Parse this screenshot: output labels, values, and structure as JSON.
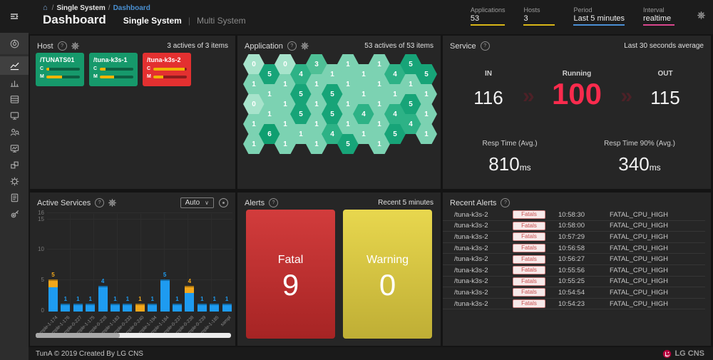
{
  "icons": {
    "help": "?",
    "chevron_down": "∨",
    "home": "⌂",
    "flow_chevron": "»"
  },
  "header": {
    "breadcrumb": [
      "Single System",
      "Dashboard"
    ],
    "title": "Dashboard",
    "tabs": [
      {
        "label": "Single System",
        "active": true
      },
      {
        "label": "Multi System",
        "active": false
      }
    ],
    "stats": [
      {
        "label": "Applications",
        "value": "53",
        "underline": "#d8b517"
      },
      {
        "label": "Hosts",
        "value": "3",
        "underline": "#d8b517"
      },
      {
        "label": "Period",
        "value": "Last 5 minutes",
        "underline": "#4a8fd4"
      },
      {
        "label": "Interval",
        "value": "realtime",
        "underline": "#d8478d"
      }
    ]
  },
  "sidebar": {
    "items": [
      {
        "icon": "dashboard-icon",
        "section": true
      },
      {
        "icon": "line-chart-icon",
        "active": true
      },
      {
        "icon": "bar-chart-icon"
      },
      {
        "icon": "server-icon"
      },
      {
        "icon": "monitor-icon"
      },
      {
        "icon": "user-search-icon"
      },
      {
        "icon": "screen-image-icon"
      },
      {
        "icon": "component-icon"
      },
      {
        "icon": "service-gear-icon"
      },
      {
        "icon": "report-icon"
      },
      {
        "icon": "tools-icon"
      }
    ]
  },
  "panels": {
    "host": {
      "title": "Host",
      "summary": "3 actives of 3 items",
      "row_labels": {
        "cpu": "C",
        "mem": "M"
      },
      "cards": [
        {
          "name": "/TUNATS01",
          "status": "normal",
          "cpu_pct": 8,
          "mem_pct": 46
        },
        {
          "name": "/tuna-k3s-1",
          "status": "normal",
          "cpu_pct": 18,
          "mem_pct": 42
        },
        {
          "name": "/tuna-k3s-2",
          "status": "fatal",
          "cpu_pct": 93,
          "mem_pct": 30
        }
      ]
    },
    "application": {
      "title": "Application",
      "summary": "53 actives of 53 items",
      "value_colors": {
        "0": "#a7e3cb",
        "1": "#7cd2b2",
        "3": "#4fc096",
        "4": "#2db286",
        "5": "#17a478",
        "6": "#0f9f70"
      },
      "hex_columns": [
        {
          "offset": false,
          "values": [
            0,
            1,
            0,
            1,
            1
          ]
        },
        {
          "offset": true,
          "values": [
            5,
            1,
            1,
            6
          ]
        },
        {
          "offset": false,
          "values": [
            0,
            1,
            1,
            1,
            1
          ]
        },
        {
          "offset": true,
          "values": [
            4,
            5,
            5,
            1
          ]
        },
        {
          "offset": false,
          "values": [
            3,
            1,
            1,
            1,
            1
          ]
        },
        {
          "offset": true,
          "values": [
            1,
            5,
            5,
            4
          ]
        },
        {
          "offset": false,
          "values": [
            1,
            1,
            1,
            1,
            5
          ]
        },
        {
          "offset": true,
          "values": [
            1,
            1,
            4,
            1
          ]
        },
        {
          "offset": false,
          "values": [
            1,
            1,
            1,
            1,
            1
          ]
        },
        {
          "offset": true,
          "values": [
            4,
            1,
            4,
            5
          ]
        },
        {
          "offset": false,
          "values": [
            5,
            1,
            5,
            4
          ]
        },
        {
          "offset": true,
          "values": [
            5,
            1,
            1,
            1
          ]
        }
      ]
    },
    "service": {
      "title": "Service",
      "note": "Last 30 seconds average",
      "in_label": "IN",
      "in_value": "116",
      "running_label": "Running",
      "running_value": "100",
      "out_label": "OUT",
      "out_value": "115",
      "resp_avg_label": "Resp Time (Avg.)",
      "resp_avg_value": "810",
      "resp_avg_unit": "ms",
      "resp_90_label": "Resp Time 90% (Avg.)",
      "resp_90_value": "340",
      "resp_90_unit": "ms"
    },
    "active_services": {
      "title": "Active Services",
      "dropdown": "Auto",
      "y_ticks": [
        0,
        5,
        10,
        15,
        16
      ],
      "y_max": 16,
      "scrollbar_thumb_pct": 43,
      "bars": [
        {
          "label": "sample-1-174",
          "total_label": "5",
          "label_color": "#f2a71b",
          "segments": [
            {
              "value": 4,
              "color": "#1e9bf0"
            },
            {
              "value": 1,
              "color": "#f2a71b"
            }
          ]
        },
        {
          "label": "sample-1-176",
          "total_label": "1",
          "label_color": "#1e9bf0",
          "segments": [
            {
              "value": 1,
              "color": "#1e9bf0"
            }
          ]
        },
        {
          "label": "sample-0-227",
          "total_label": "1",
          "label_color": "#1e9bf0",
          "segments": [
            {
              "value": 1,
              "color": "#1e9bf0"
            }
          ]
        },
        {
          "label": "sample-1-175",
          "total_label": "1",
          "label_color": "#1e9bf0",
          "segments": [
            {
              "value": 1,
              "color": "#1e9bf0"
            }
          ]
        },
        {
          "label": "sample-0-228",
          "total_label": "4",
          "label_color": "#1e9bf0",
          "segments": [
            {
              "value": 4,
              "color": "#1e9bf0"
            }
          ]
        },
        {
          "label": "sample-1-183",
          "total_label": "1",
          "label_color": "#1e9bf0",
          "segments": [
            {
              "value": 1,
              "color": "#1e9bf0"
            }
          ]
        },
        {
          "label": "sample-0-233",
          "total_label": "1",
          "label_color": "#1e9bf0",
          "segments": [
            {
              "value": 1,
              "color": "#1e9bf0"
            }
          ]
        },
        {
          "label": "sample-0-240",
          "total_label": "1",
          "label_color": "#f2a71b",
          "segments": [
            {
              "value": 1,
              "color": "#f2a71b"
            }
          ]
        },
        {
          "label": "sample-1-194",
          "total_label": "1",
          "label_color": "#1e9bf0",
          "segments": [
            {
              "value": 1,
              "color": "#1e9bf0"
            }
          ]
        },
        {
          "label": "sample-1-184",
          "total_label": "5",
          "label_color": "#1e9bf0",
          "segments": [
            {
              "value": 5,
              "color": "#1e9bf0"
            }
          ]
        },
        {
          "label": "sample-0-237",
          "total_label": "1",
          "label_color": "#1e9bf0",
          "segments": [
            {
              "value": 1,
              "color": "#1e9bf0"
            }
          ]
        },
        {
          "label": "sample-0-238",
          "total_label": "4",
          "label_color": "#f2a71b",
          "segments": [
            {
              "value": 3,
              "color": "#1e9bf0"
            },
            {
              "value": 1,
              "color": "#f2a71b"
            }
          ]
        },
        {
          "label": "sample-0-239",
          "total_label": "1",
          "label_color": "#1e9bf0",
          "segments": [
            {
              "value": 1,
              "color": "#1e9bf0"
            }
          ]
        },
        {
          "label": "sample-1-185",
          "total_label": "1",
          "label_color": "#1e9bf0",
          "segments": [
            {
              "value": 1,
              "color": "#1e9bf0"
            }
          ]
        },
        {
          "label": "sampl",
          "total_label": "1",
          "label_color": "#1e9bf0",
          "segments": [
            {
              "value": 1,
              "color": "#1e9bf0"
            }
          ]
        }
      ]
    },
    "alerts": {
      "title": "Alerts",
      "note": "Recent 5 minutes",
      "cards": [
        {
          "label": "Fatal",
          "value": "9",
          "type": "fatal"
        },
        {
          "label": "Warning",
          "value": "0",
          "type": "warning"
        }
      ]
    },
    "recent_alerts": {
      "title": "Recent Alerts",
      "rows": [
        {
          "host": "/tuna-k3s-2",
          "badge": "Fatals",
          "time": "10:58:30",
          "message": "FATAL_CPU_HIGH"
        },
        {
          "host": "/tuna-k3s-2",
          "badge": "Fatals",
          "time": "10:58:00",
          "message": "FATAL_CPU_HIGH"
        },
        {
          "host": "/tuna-k3s-2",
          "badge": "Fatals",
          "time": "10:57:29",
          "message": "FATAL_CPU_HIGH"
        },
        {
          "host": "/tuna-k3s-2",
          "badge": "Fatals",
          "time": "10:56:58",
          "message": "FATAL_CPU_HIGH"
        },
        {
          "host": "/tuna-k3s-2",
          "badge": "Fatals",
          "time": "10:56:27",
          "message": "FATAL_CPU_HIGH"
        },
        {
          "host": "/tuna-k3s-2",
          "badge": "Fatals",
          "time": "10:55:56",
          "message": "FATAL_CPU_HIGH"
        },
        {
          "host": "/tuna-k3s-2",
          "badge": "Fatals",
          "time": "10:55:25",
          "message": "FATAL_CPU_HIGH"
        },
        {
          "host": "/tuna-k3s-2",
          "badge": "Fatals",
          "time": "10:54:54",
          "message": "FATAL_CPU_HIGH"
        },
        {
          "host": "/tuna-k3s-2",
          "badge": "Fatals",
          "time": "10:54:23",
          "message": "FATAL_CPU_HIGH"
        }
      ]
    }
  },
  "footer": {
    "copyright": "TunA © 2019 Created By LG CNS",
    "logo_text": "LG CNS"
  }
}
